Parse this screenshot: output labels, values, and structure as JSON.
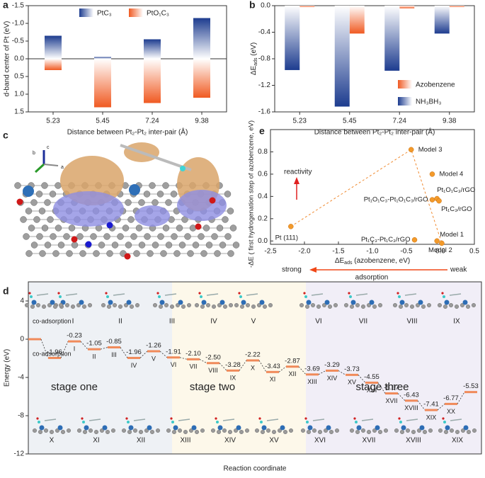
{
  "chart_data": [
    {
      "panel_label": "a",
      "type": "bar",
      "barmode": "overlay",
      "categories": [
        "5.23",
        "5.45",
        "7.24",
        "9.38"
      ],
      "series": [
        {
          "name": "PtC₃",
          "color": "#1d3c8f",
          "values": [
            -0.65,
            -0.05,
            -0.55,
            -1.15
          ]
        },
        {
          "name": "PtO₁C₃",
          "color": "#f05a22",
          "values": [
            0.32,
            1.37,
            1.25,
            1.1
          ]
        }
      ],
      "ylim": [
        -1.5,
        1.5
      ],
      "yticks": [
        -1.5,
        {
          "value": -1,
          "label": "-1.0"
        },
        -0.5,
        {
          "value": 0,
          "label": "0.0"
        },
        0.5,
        {
          "value": 1,
          "label": "1.0"
        },
        1.5
      ],
      "xlabel": "Distance between Pt₂-Pt₂ inter-pair (Å)",
      "ylabel": "d-band center of Pt (eV)",
      "legend": "top"
    },
    {
      "panel_label": "b",
      "type": "bar",
      "barmode": "group",
      "categories": [
        "5.23",
        "5.45",
        "7.24",
        "9.38"
      ],
      "series": [
        {
          "name": "Azobenzene",
          "color": "#f05a22",
          "values": [
            -0.02,
            -0.42,
            -0.04,
            -0.02
          ]
        },
        {
          "name": "NH₃BH₃",
          "color": "#1d3c8f",
          "values": [
            -0.97,
            -1.52,
            -0.98,
            -0.42
          ]
        }
      ],
      "ylim": [
        0,
        -1.6
      ],
      "yticks": [
        {
          "value": 0,
          "label": "0.0"
        },
        -0.4,
        -0.8,
        -1.2,
        -1.6
      ],
      "xlabel": "Distance between Pt₂-Pt₂ inter-pair (Å)",
      "ylabel": [
        "ΔE",
        "ads",
        "(eV)"
      ],
      "legend": "lower right"
    },
    {
      "panel_label": "e",
      "type": "scatter",
      "color": "#f39a2b",
      "x": [
        -2.2,
        -0.43,
        -0.12,
        -0.05,
        -0.12,
        -0.02,
        -0.38,
        -0.05,
        0.02
      ],
      "values": [
        0.13,
        0.82,
        0.6,
        0.38,
        0.37,
        0.36,
        0.01,
        0.0,
        -0.02
      ],
      "labels": [
        "Pt (111)",
        "Model  3",
        "Model  4",
        "Pt₁O₁C₃/rGO",
        "Pt₁O₁C₃-Pt₁O₁C₃/rGO",
        "Pt₁C₃/rGO",
        "Pt₁C₃-Pt₁C₃/rGO",
        "Model  1",
        "Model  2"
      ],
      "xlim": [
        -2.5,
        0.5
      ],
      "xticks": [
        -2.5,
        {
          "value": -2,
          "label": "-2.0"
        },
        -1.5,
        {
          "value": -1,
          "label": "-1.0"
        },
        -0.5,
        {
          "value": 0,
          "label": "0.0"
        },
        0.5
      ],
      "ylim": [
        -0.03,
        1.0
      ],
      "yticks": [
        {
          "value": 0,
          "label": "0.0"
        },
        0.2,
        0.4,
        0.6,
        0.8
      ],
      "xlabel": [
        "ΔE",
        "ads",
        "(azobenzene, eV)"
      ],
      "ylabel": "-ΔE ( first hydrogenation step of azobenzene, eV)",
      "annotations": {
        "reactivity": "reactivity",
        "strong": "strong",
        "weak": "weak",
        "adsorption": "adsorption"
      }
    },
    {
      "panel_label": "d",
      "type": "energy",
      "color": "#f08a5a",
      "values": [
        0,
        -1.96,
        -0.23,
        -1.05,
        -0.85,
        -1.96,
        -1.26,
        -1.91,
        -2.1,
        -2.5,
        -3.28,
        -2.22,
        -3.43,
        -2.87,
        -3.69,
        -3.29,
        -3.73,
        -4.55,
        -5.67,
        -6.43,
        -7.41,
        -6.77,
        -5.53
      ],
      "value_labels": [
        null,
        "-1.96",
        "-0.23",
        "-1.05",
        "-0.85",
        "-1.96",
        "-1.26",
        "-1.91",
        "-2.10",
        "-2.50",
        "-3.28",
        "-2.22",
        "-3.43",
        "-2.87",
        "-3.69",
        "-3.29",
        "-3.73",
        "-4.55",
        "-5.67",
        "-6.43",
        "-7.41",
        "-6.77",
        "-5.53"
      ],
      "categories": [
        null,
        null,
        "I",
        "II",
        "III",
        "IV",
        "V",
        "VI",
        "VII",
        "VIII",
        "IX",
        "X",
        "XI",
        "XII",
        "XIII",
        "XIV",
        "XV",
        "XVI",
        "XVII",
        "XVIII",
        "XIX",
        "XX",
        null
      ],
      "ylim": [
        -12,
        6
      ],
      "yticks": [
        4,
        0,
        -4,
        -8,
        -12
      ],
      "ylabel": "Energy (eV)",
      "xlabel": "Reaction coordinate",
      "stages": [
        "stage one",
        "stage two",
        "stage three"
      ],
      "annotations": [
        "co-adsorption",
        "co-adsorption"
      ],
      "thumbnails_top": [
        "I",
        "II",
        "III",
        "IV",
        "V",
        "VI",
        "VII",
        "VIII",
        "IX"
      ],
      "thumbnails_bottom": [
        "X",
        "XI",
        "XII",
        "XIII",
        "XIV",
        "XV",
        "XVI",
        "XVII",
        "XVIII",
        "XIX"
      ]
    }
  ],
  "figure_c": {
    "panel_label": "c",
    "axis_labels": [
      "b",
      "c",
      "a"
    ]
  }
}
